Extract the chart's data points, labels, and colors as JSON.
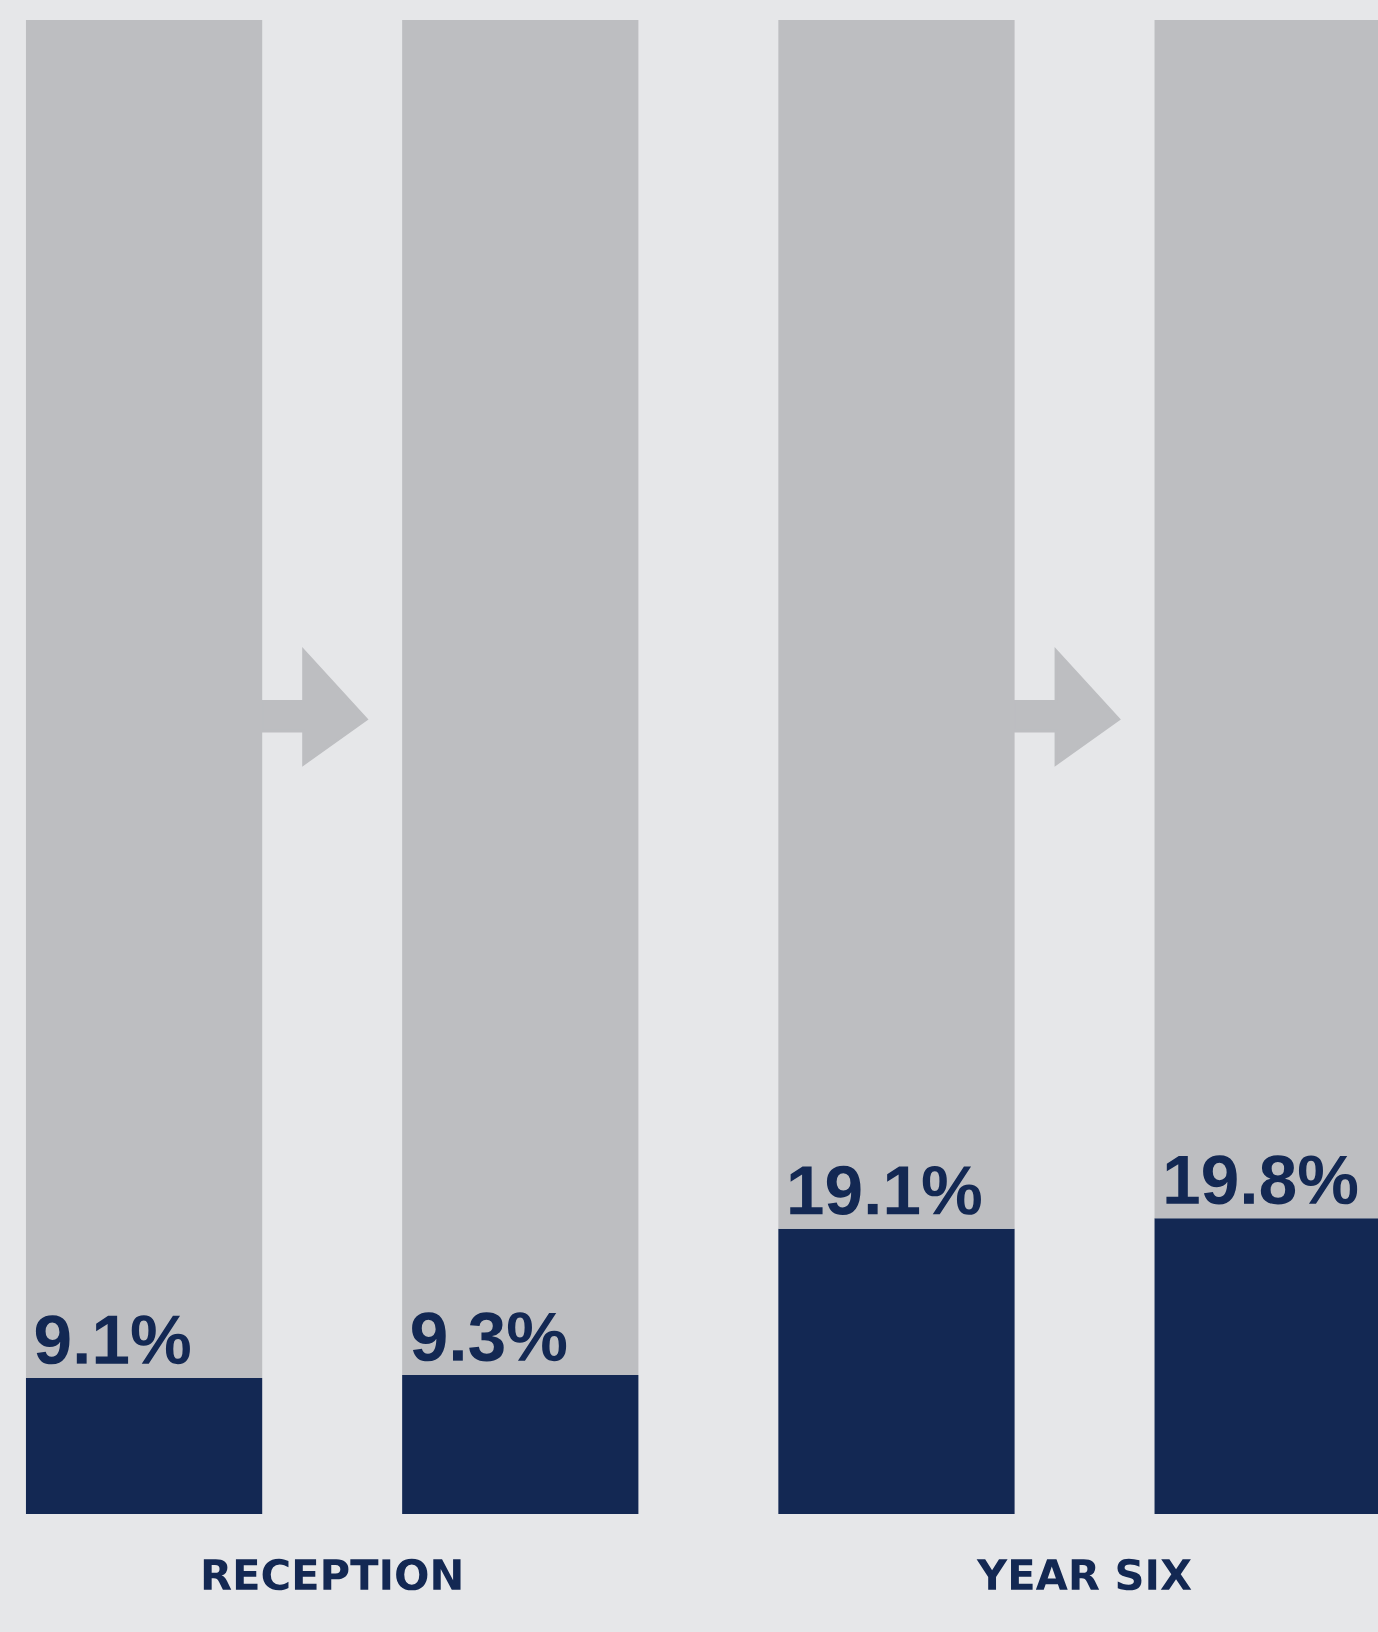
{
  "chart_data": {
    "type": "bar",
    "categories": [
      null,
      null,
      null,
      null
    ],
    "stacked": true,
    "series": [
      {
        "color": "#132853",
        "values": [
          9.1,
          9.3,
          19.1,
          19.8
        ],
        "value_labels": [
          "9.1%",
          "9.3%",
          "19.1%",
          "19.8%"
        ]
      },
      {
        "color": "#bdbec1",
        "values": [
          90.9,
          90.7,
          80.9,
          80.2
        ]
      }
    ],
    "ylim": [
      0,
      100
    ],
    "grid": false,
    "annotations": [
      "RECEPTION",
      "YEAR SIX"
    ]
  }
}
